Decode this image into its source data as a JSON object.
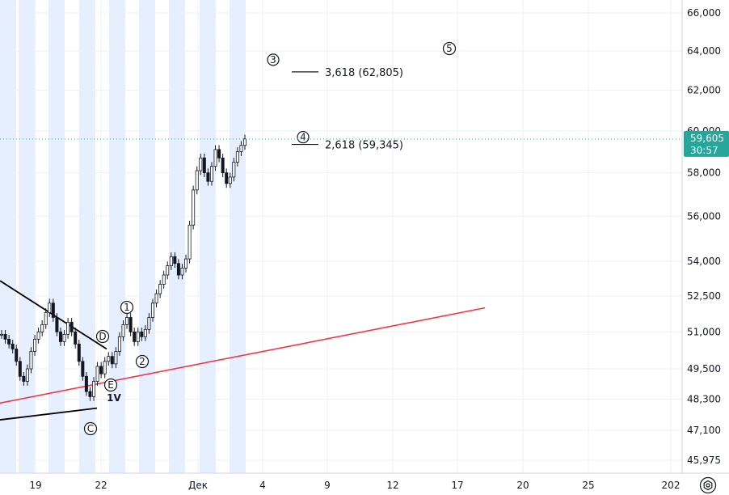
{
  "chart_data": {
    "type": "line",
    "title": "",
    "y_scale": "log",
    "ylim": [
      45700,
      66300
    ],
    "y_ticks": [
      "66,000",
      "64,000",
      "62,000",
      "60,000",
      "58,000",
      "56,000",
      "54,000",
      "52,500",
      "51,000",
      "49,500",
      "48,300",
      "47,100",
      "45,975"
    ],
    "x_ticks": [
      "19",
      "22",
      "Дек",
      "4",
      "9",
      "12",
      "17",
      "20",
      "25",
      "202"
    ],
    "current_price": {
      "value": "59,605",
      "countdown": "30:57"
    },
    "series": [
      {
        "values": [
          50900,
          50700,
          50500,
          50300,
          49800,
          49200,
          49000,
          49500,
          50200,
          50700,
          51000,
          51300,
          51800,
          52200,
          51600,
          51000,
          50600,
          50900,
          51400,
          51000,
          50500,
          49800,
          49200,
          48600,
          48400,
          49000,
          49600,
          49300,
          49800,
          50000,
          49700,
          50200,
          50800,
          51300,
          51600,
          51000,
          50600,
          51000,
          50800,
          51100,
          51600,
          52200,
          52600,
          53000,
          53400,
          53800,
          54200,
          53900,
          53400,
          53700,
          54100,
          55600,
          57200,
          58100,
          58700,
          58000,
          57600,
          58300,
          59100,
          58700,
          58000,
          57500,
          57800,
          58500,
          59000,
          59300,
          59605
        ]
      }
    ],
    "fib_levels": [
      {
        "label": "3,618 (62,805)",
        "value": 62805,
        "wave": "3"
      },
      {
        "label": "2,618 (59,345)",
        "value": 59345,
        "wave": "4"
      }
    ],
    "wave_labels": [
      {
        "text": "5",
        "circled": true
      },
      {
        "text": "1",
        "circled": true
      },
      {
        "text": "2",
        "circled": true
      },
      {
        "text": "D",
        "circled": true
      },
      {
        "text": "E",
        "circled": true
      },
      {
        "text": "1V",
        "circled": false
      },
      {
        "text": "C",
        "circled": true
      }
    ],
    "colors": {
      "candles": "#131722",
      "red_trendline": "#f23645",
      "black_trendline": "#000000",
      "price_tag": "#26a69a",
      "session_band": "#e6efff",
      "grid": "#eef0f3"
    }
  }
}
